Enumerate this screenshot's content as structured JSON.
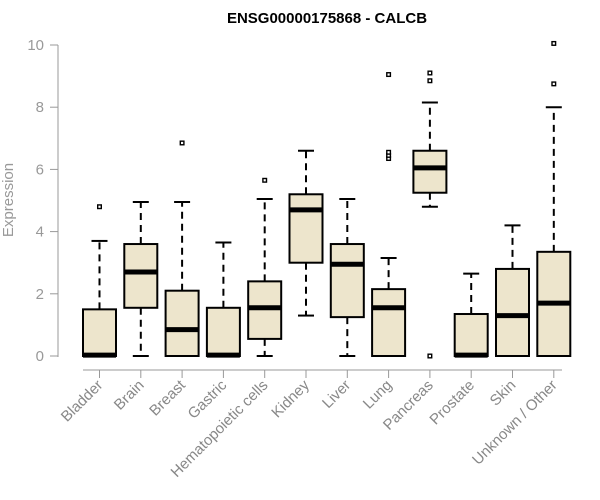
{
  "chart_data": {
    "type": "boxplot",
    "title": "ENSG00000175868 - CALCB",
    "xlabel": "",
    "ylabel": "Expression",
    "ylim": [
      0,
      10
    ],
    "yticks": [
      0,
      2,
      4,
      6,
      8,
      10
    ],
    "grid": false,
    "colors": {
      "box_fill": "#ede5cc",
      "box_stroke": "#000000",
      "axis": "#999999"
    },
    "categories": [
      "Bladder",
      "Brain",
      "Breast",
      "Gastric",
      "Hematopoietic cells",
      "Kidney",
      "Liver",
      "Lung",
      "Pancreas",
      "Prostate",
      "Skin",
      "Unknown / Other"
    ],
    "boxes": [
      {
        "name": "Bladder",
        "q1": 0,
        "median": 0.03,
        "q3": 1.5,
        "whisker_low": 0,
        "whisker_high": 3.7,
        "outliers": [
          4.8
        ]
      },
      {
        "name": "Brain",
        "q1": 1.55,
        "median": 2.7,
        "q3": 3.6,
        "whisker_low": 0,
        "whisker_high": 4.95,
        "outliers": []
      },
      {
        "name": "Breast",
        "q1": 0,
        "median": 0.85,
        "q3": 2.1,
        "whisker_low": 0,
        "whisker_high": 4.95,
        "outliers": [
          6.85
        ]
      },
      {
        "name": "Gastric",
        "q1": 0,
        "median": 0.03,
        "q3": 1.55,
        "whisker_low": 0,
        "whisker_high": 3.65,
        "outliers": []
      },
      {
        "name": "Hematopoietic cells",
        "q1": 0.55,
        "median": 1.55,
        "q3": 2.4,
        "whisker_low": 0,
        "whisker_high": 5.05,
        "outliers": [
          5.65
        ]
      },
      {
        "name": "Kidney",
        "q1": 3.0,
        "median": 4.7,
        "q3": 5.2,
        "whisker_low": 1.3,
        "whisker_high": 6.6,
        "outliers": []
      },
      {
        "name": "Liver",
        "q1": 1.25,
        "median": 2.95,
        "q3": 3.6,
        "whisker_low": 0,
        "whisker_high": 5.05,
        "outliers": []
      },
      {
        "name": "Lung",
        "q1": 0,
        "median": 1.55,
        "q3": 2.15,
        "whisker_low": 0,
        "whisker_high": 3.15,
        "outliers": [
          6.35,
          6.45,
          6.55,
          9.05
        ]
      },
      {
        "name": "Pancreas",
        "q1": 5.25,
        "median": 6.05,
        "q3": 6.6,
        "whisker_low": 4.8,
        "whisker_high": 8.15,
        "outliers": [
          0,
          8.85,
          9.1
        ]
      },
      {
        "name": "Prostate",
        "q1": 0,
        "median": 0.03,
        "q3": 1.35,
        "whisker_low": 0,
        "whisker_high": 2.65,
        "outliers": []
      },
      {
        "name": "Skin",
        "q1": 0,
        "median": 1.3,
        "q3": 2.8,
        "whisker_low": 0,
        "whisker_high": 4.2,
        "outliers": []
      },
      {
        "name": "Unknown / Other",
        "q1": 0,
        "median": 1.7,
        "q3": 3.35,
        "whisker_low": 0,
        "whisker_high": 8.0,
        "outliers": [
          8.75,
          10.05
        ]
      }
    ]
  }
}
